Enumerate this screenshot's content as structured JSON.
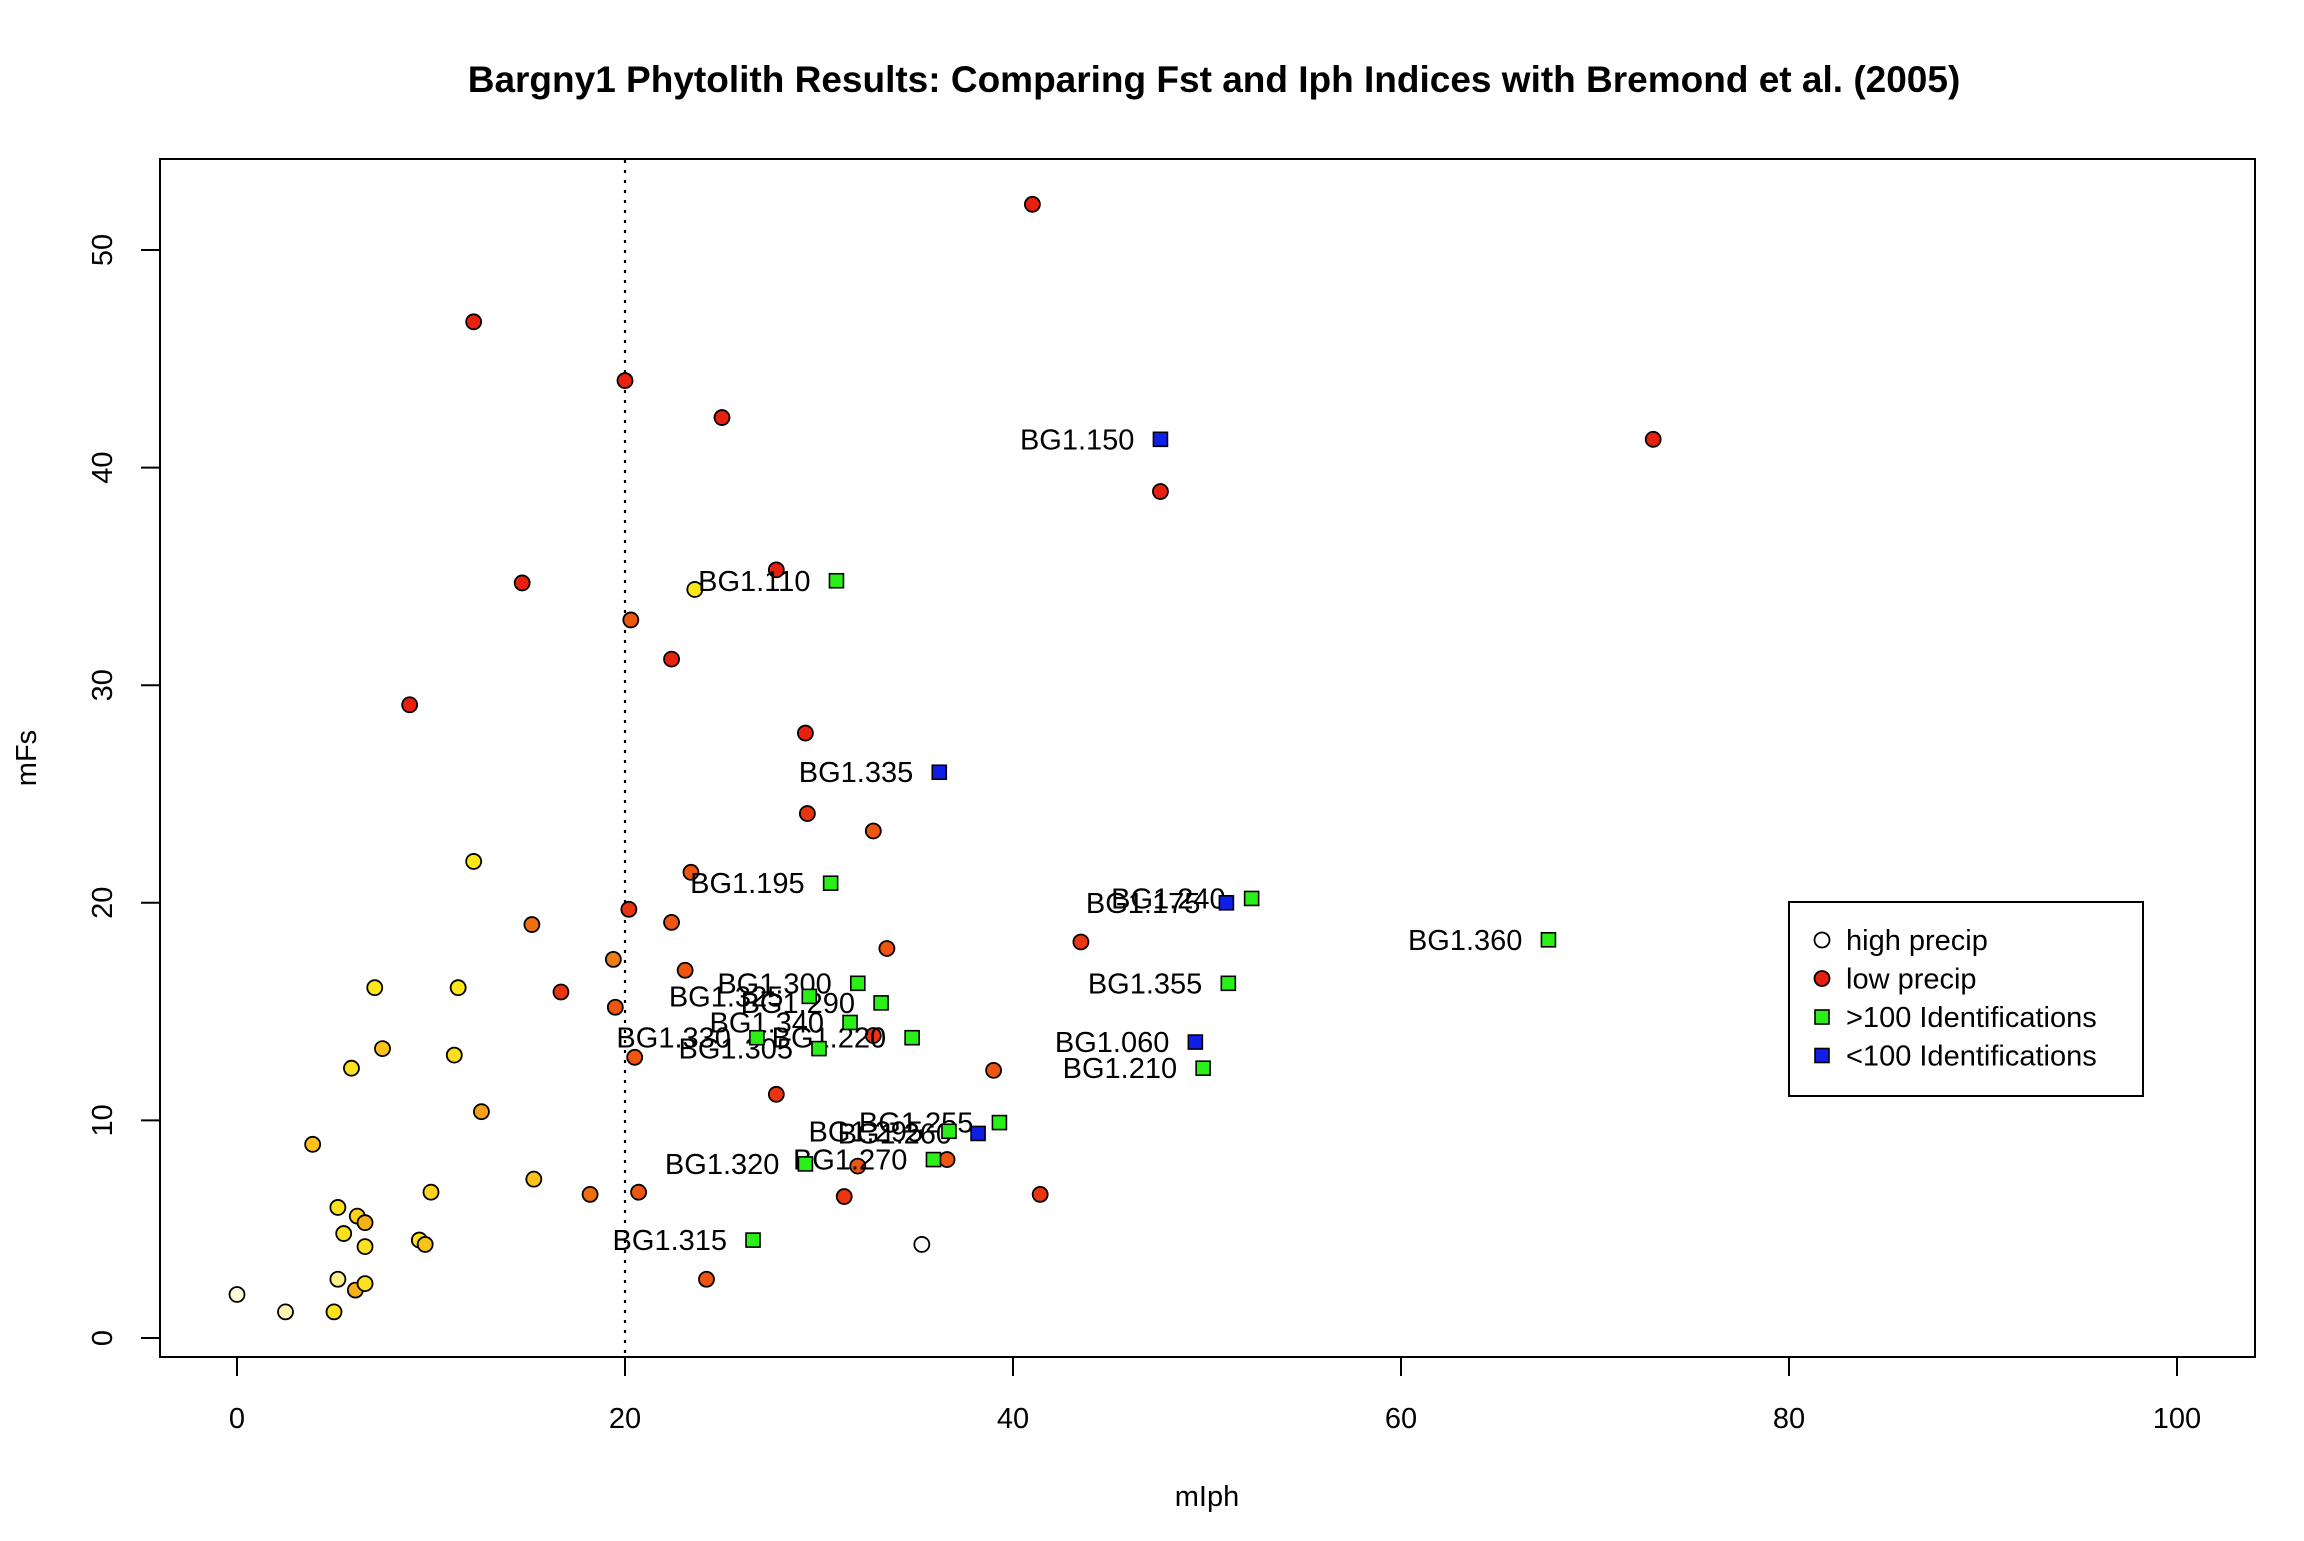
{
  "chart_data": {
    "type": "scatter",
    "title": "Bargny1 Phytolith Results: Comparing Fst and Iph Indices with Bremond et al. (2005)",
    "xlabel": "mIph",
    "ylabel": "mFs",
    "xlim": [
      0,
      100
    ],
    "ylim": [
      0,
      52
    ],
    "xticks": [
      "0",
      "20",
      "40",
      "60",
      "80",
      "100"
    ],
    "yticks": [
      "0",
      "10",
      "20",
      "30",
      "40",
      "50"
    ],
    "reference_line": {
      "x": 20,
      "style": "dotted"
    },
    "grid": false,
    "legend": {
      "position": "right",
      "entries": [
        {
          "label": "high precip",
          "shape": "circle",
          "color": "#ffffff"
        },
        {
          "label": "low precip",
          "shape": "circle",
          "color": "#e8210e"
        },
        {
          "label": ">100 Identifications",
          "shape": "square",
          "color": "#2bf018"
        },
        {
          "label": "<100 Identifications",
          "shape": "square",
          "color": "#0f1fe8"
        }
      ]
    },
    "reference_points": [
      {
        "x": 0.0,
        "y": 2.0,
        "color": "#fffbd8"
      },
      {
        "x": 2.5,
        "y": 1.2,
        "color": "#fff4b0"
      },
      {
        "x": 5.0,
        "y": 1.2,
        "color": "#ffe317"
      },
      {
        "x": 5.2,
        "y": 2.7,
        "color": "#fff089"
      },
      {
        "x": 6.1,
        "y": 2.2,
        "color": "#f8b018"
      },
      {
        "x": 6.6,
        "y": 2.5,
        "color": "#fde11f"
      },
      {
        "x": 5.2,
        "y": 6.0,
        "color": "#fde11f"
      },
      {
        "x": 5.5,
        "y": 4.8,
        "color": "#fde11f"
      },
      {
        "x": 6.2,
        "y": 5.6,
        "color": "#fdcf1f"
      },
      {
        "x": 6.6,
        "y": 5.3,
        "color": "#f8b018"
      },
      {
        "x": 6.6,
        "y": 4.2,
        "color": "#fde11f"
      },
      {
        "x": 9.4,
        "y": 4.5,
        "color": "#fde11f"
      },
      {
        "x": 9.7,
        "y": 4.3,
        "color": "#f9c31a"
      },
      {
        "x": 10.0,
        "y": 6.7,
        "color": "#fdd520"
      },
      {
        "x": 3.9,
        "y": 8.9,
        "color": "#fcc21a"
      },
      {
        "x": 5.9,
        "y": 12.4,
        "color": "#fde11f"
      },
      {
        "x": 7.5,
        "y": 13.3,
        "color": "#fcc21a"
      },
      {
        "x": 7.1,
        "y": 16.1,
        "color": "#fde817"
      },
      {
        "x": 11.2,
        "y": 13.0,
        "color": "#fde11f"
      },
      {
        "x": 11.4,
        "y": 16.1,
        "color": "#fde817"
      },
      {
        "x": 12.2,
        "y": 21.9,
        "color": "#fde817"
      },
      {
        "x": 12.6,
        "y": 10.4,
        "color": "#f7a117"
      },
      {
        "x": 15.3,
        "y": 7.3,
        "color": "#fcc21a"
      },
      {
        "x": 18.2,
        "y": 6.6,
        "color": "#f06e12"
      },
      {
        "x": 20.7,
        "y": 6.7,
        "color": "#ee5510"
      },
      {
        "x": 15.2,
        "y": 19.0,
        "color": "#f06e12"
      },
      {
        "x": 16.7,
        "y": 15.9,
        "color": "#ea3510"
      },
      {
        "x": 19.4,
        "y": 17.4,
        "color": "#f07c14"
      },
      {
        "x": 19.5,
        "y": 15.2,
        "color": "#ee5510"
      },
      {
        "x": 20.2,
        "y": 19.7,
        "color": "#ea3510"
      },
      {
        "x": 20.5,
        "y": 12.9,
        "color": "#ee5510"
      },
      {
        "x": 22.4,
        "y": 19.1,
        "color": "#ee5510"
      },
      {
        "x": 23.1,
        "y": 16.9,
        "color": "#ee5510"
      },
      {
        "x": 23.4,
        "y": 21.4,
        "color": "#ee5510"
      },
      {
        "x": 23.6,
        "y": 34.4,
        "color": "#fde817"
      },
      {
        "x": 20.3,
        "y": 33.0,
        "color": "#ee5510"
      },
      {
        "x": 22.4,
        "y": 31.2,
        "color": "#e8210e"
      },
      {
        "x": 24.2,
        "y": 2.7,
        "color": "#ee5510"
      },
      {
        "x": 27.8,
        "y": 11.2,
        "color": "#ea3510"
      },
      {
        "x": 29.3,
        "y": 27.8,
        "color": "#e8210e"
      },
      {
        "x": 29.4,
        "y": 24.1,
        "color": "#ea3510"
      },
      {
        "x": 32.8,
        "y": 23.3,
        "color": "#ee5510"
      },
      {
        "x": 33.5,
        "y": 17.9,
        "color": "#ee5510"
      },
      {
        "x": 32.8,
        "y": 13.9,
        "color": "#ea3510"
      },
      {
        "x": 31.3,
        "y": 6.5,
        "color": "#ea3510"
      },
      {
        "x": 32.0,
        "y": 7.9,
        "color": "#ee5510"
      },
      {
        "x": 35.3,
        "y": 4.3,
        "color": "#ffffff"
      },
      {
        "x": 36.6,
        "y": 8.2,
        "color": "#ee5510"
      },
      {
        "x": 39.0,
        "y": 12.3,
        "color": "#ee5510"
      },
      {
        "x": 41.4,
        "y": 6.6,
        "color": "#ea3510"
      },
      {
        "x": 43.5,
        "y": 18.2,
        "color": "#ea3510"
      },
      {
        "x": 8.9,
        "y": 29.1,
        "color": "#e8210e"
      },
      {
        "x": 12.2,
        "y": 46.7,
        "color": "#e8210e"
      },
      {
        "x": 14.7,
        "y": 34.7,
        "color": "#e8210e"
      },
      {
        "x": 20.0,
        "y": 44.0,
        "color": "#e8210e"
      },
      {
        "x": 25.0,
        "y": 42.3,
        "color": "#e8210e"
      },
      {
        "x": 27.8,
        "y": 35.3,
        "color": "#e8210e"
      },
      {
        "x": 41.0,
        "y": 52.1,
        "color": "#e8210e"
      },
      {
        "x": 47.6,
        "y": 38.9,
        "color": "#e8210e"
      },
      {
        "x": 73.0,
        "y": 41.3,
        "color": "#e8210e"
      }
    ],
    "bargny_samples": [
      {
        "label": "BG1.150",
        "x": 47.6,
        "y": 41.3,
        "group": "<100 Identifications"
      },
      {
        "label": "BG1.110",
        "x": 30.9,
        "y": 34.8,
        "group": ">100 Identifications"
      },
      {
        "label": "BG1.335",
        "x": 36.2,
        "y": 26.0,
        "group": "<100 Identifications"
      },
      {
        "label": "BG1.195",
        "x": 30.6,
        "y": 20.9,
        "group": ">100 Identifications"
      },
      {
        "label": "BG1.240",
        "x": 52.3,
        "y": 20.2,
        "group": ">100 Identifications"
      },
      {
        "label": "BG1.175",
        "x": 51.0,
        "y": 20.0,
        "group": "<100 Identifications"
      },
      {
        "label": "BG1.360",
        "x": 67.6,
        "y": 18.3,
        "group": ">100 Identifications"
      },
      {
        "label": "BG1.355",
        "x": 51.1,
        "y": 16.3,
        "group": ">100 Identifications"
      },
      {
        "label": "BG1.300",
        "x": 32.0,
        "y": 16.3,
        "group": ">100 Identifications"
      },
      {
        "label": "BG1.290",
        "x": 33.2,
        "y": 15.4,
        "group": ">100 Identifications"
      },
      {
        "label": "BG1.325",
        "x": 29.5,
        "y": 15.7,
        "group": ">100 Identifications"
      },
      {
        "label": "BG1.340",
        "x": 31.6,
        "y": 14.5,
        "group": ">100 Identifications"
      },
      {
        "label": "BG1.220",
        "x": 34.8,
        "y": 13.8,
        "group": ">100 Identifications"
      },
      {
        "label": "BG1.330",
        "x": 26.8,
        "y": 13.8,
        "group": ">100 Identifications"
      },
      {
        "label": "BG1.305",
        "x": 30.0,
        "y": 13.3,
        "group": ">100 Identifications"
      },
      {
        "label": "BG1.060",
        "x": 49.4,
        "y": 13.6,
        "group": "<100 Identifications"
      },
      {
        "label": "BG1.210",
        "x": 49.8,
        "y": 12.4,
        "group": ">100 Identifications"
      },
      {
        "label": "BG1.255",
        "x": 39.3,
        "y": 9.9,
        "group": ">100 Identifications"
      },
      {
        "label": "BG1.260",
        "x": 38.2,
        "y": 9.4,
        "group": "<100 Identifications"
      },
      {
        "label": "BG1.295",
        "x": 36.7,
        "y": 9.5,
        "group": ">100 Identifications"
      },
      {
        "label": "BG1.270",
        "x": 35.9,
        "y": 8.2,
        "group": ">100 Identifications"
      },
      {
        "label": "BG1.320",
        "x": 29.3,
        "y": 8.0,
        "group": ">100 Identifications"
      },
      {
        "label": "BG1.315",
        "x": 26.6,
        "y": 4.5,
        "group": ">100 Identifications"
      }
    ]
  }
}
